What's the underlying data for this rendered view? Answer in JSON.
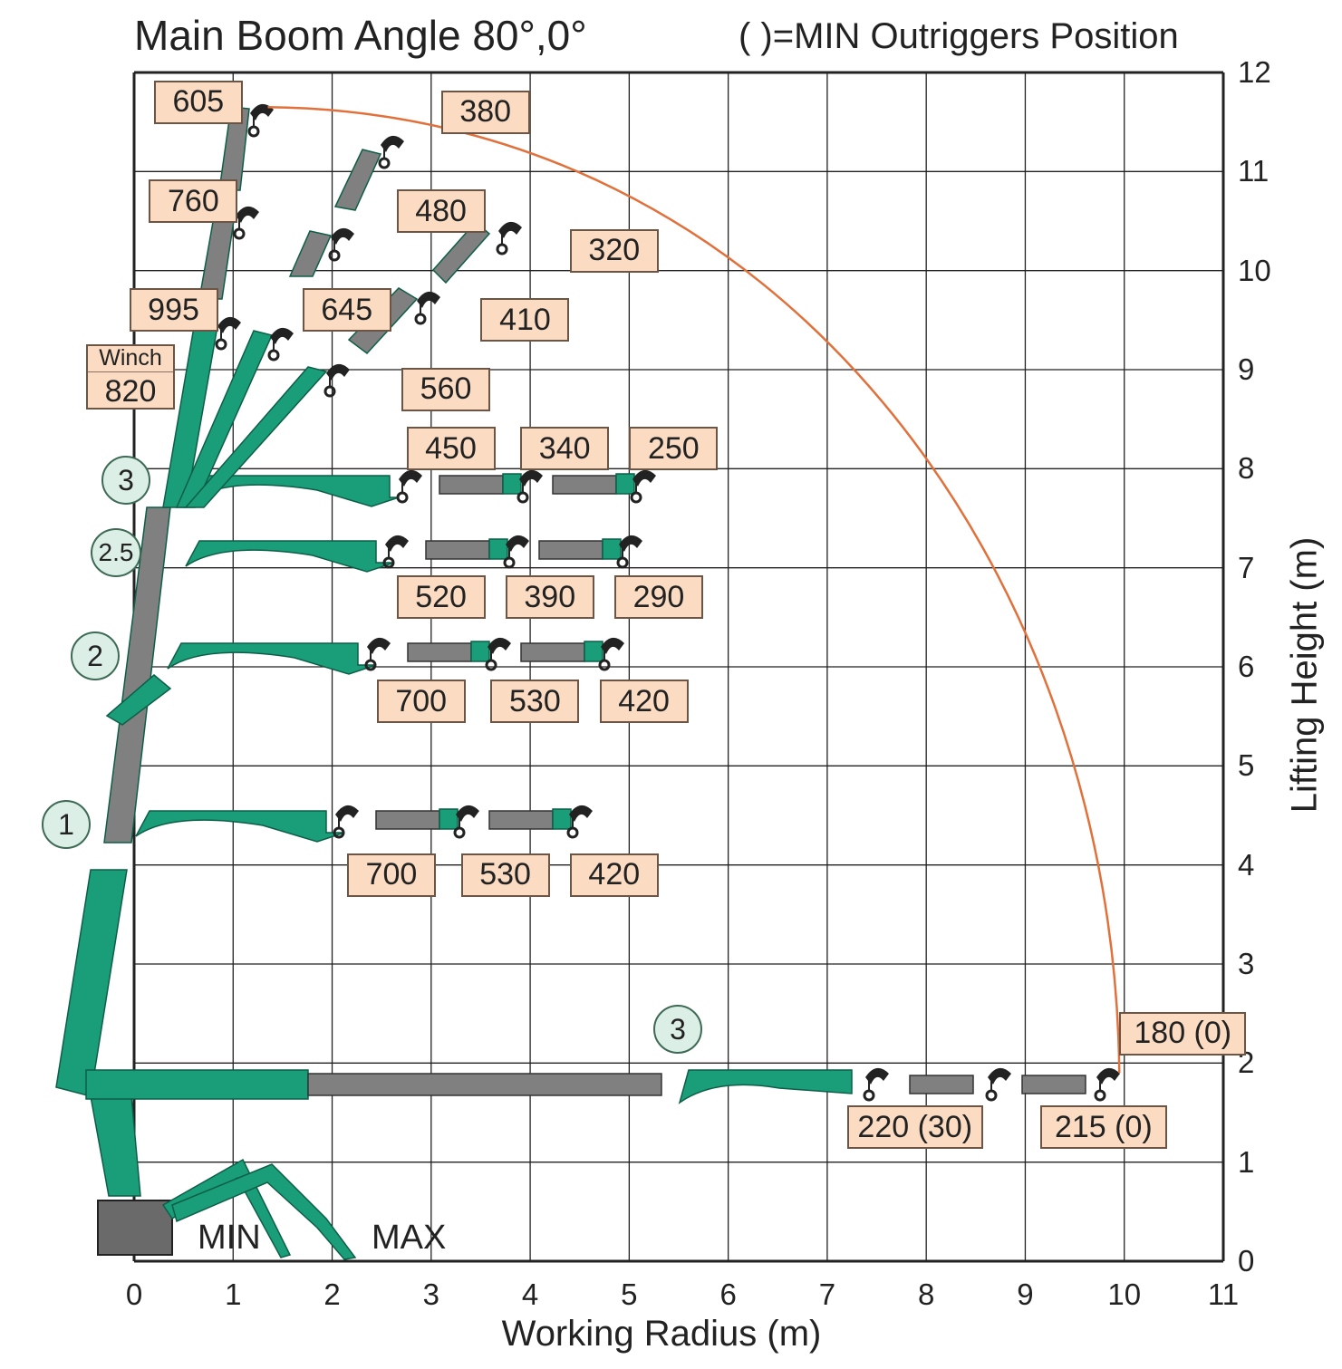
{
  "title": "Main Boom Angle 80°,0°",
  "note": "(  )=MIN Outriggers Position",
  "x_axis": {
    "label": "Working Radius (m)",
    "min": 0,
    "max": 11,
    "ticks": [
      "0",
      "1",
      "2",
      "3",
      "4",
      "5",
      "6",
      "7",
      "8",
      "9",
      "10",
      "11"
    ]
  },
  "y_axis": {
    "label": "Lifting Height (m)",
    "min": 0,
    "max": 12,
    "ticks": [
      "0",
      "1",
      "2",
      "3",
      "4",
      "5",
      "6",
      "7",
      "8",
      "9",
      "10",
      "11",
      "12"
    ]
  },
  "outriggers": {
    "min": "MIN",
    "max": "MAX"
  },
  "colors": {
    "boom": "#1a9e7a",
    "boom_dark": "#0d5e47",
    "extension": "#808080",
    "curve": "#e2703a",
    "label_bg": "#fbdcc2"
  },
  "sections": [
    "1",
    "2",
    "2.5",
    "3",
    "3"
  ],
  "winch": {
    "label": "Winch",
    "value": "820"
  },
  "loads": [
    {
      "id": "605",
      "text": "605",
      "x": 0.2,
      "y": 11.7
    },
    {
      "id": "760",
      "text": "760",
      "x": 0.15,
      "y": 10.7
    },
    {
      "id": "995",
      "text": "995",
      "x": -0.05,
      "y": 9.6
    },
    {
      "id": "380",
      "text": "380",
      "x": 3.1,
      "y": 11.6
    },
    {
      "id": "480",
      "text": "480",
      "x": 2.65,
      "y": 10.6
    },
    {
      "id": "645",
      "text": "645",
      "x": 1.7,
      "y": 9.6
    },
    {
      "id": "320",
      "text": "320",
      "x": 4.4,
      "y": 10.2
    },
    {
      "id": "410",
      "text": "410",
      "x": 3.5,
      "y": 9.5
    },
    {
      "id": "560",
      "text": "560",
      "x": 2.7,
      "y": 8.8
    },
    {
      "id": "450",
      "text": "450",
      "x": 2.75,
      "y": 8.2
    },
    {
      "id": "340",
      "text": "340",
      "x": 3.9,
      "y": 8.2
    },
    {
      "id": "250",
      "text": "250",
      "x": 5.0,
      "y": 8.2
    },
    {
      "id": "520",
      "text": "520",
      "x": 2.65,
      "y": 6.7
    },
    {
      "id": "390",
      "text": "390",
      "x": 3.75,
      "y": 6.7
    },
    {
      "id": "290",
      "text": "290",
      "x": 4.85,
      "y": 6.7
    },
    {
      "id": "700a",
      "text": "700",
      "x": 2.45,
      "y": 5.65
    },
    {
      "id": "530a",
      "text": "530",
      "x": 3.6,
      "y": 5.65
    },
    {
      "id": "420a",
      "text": "420",
      "x": 4.7,
      "y": 5.65
    },
    {
      "id": "700b",
      "text": "700",
      "x": 2.15,
      "y": 3.9
    },
    {
      "id": "530b",
      "text": "530",
      "x": 3.3,
      "y": 3.9
    },
    {
      "id": "420b",
      "text": "420",
      "x": 4.4,
      "y": 3.9
    },
    {
      "id": "180",
      "text": "180 (0)",
      "x": 9.95,
      "y": 2.3
    },
    {
      "id": "220",
      "text": "220 (30)",
      "x": 7.2,
      "y": 1.35
    },
    {
      "id": "215",
      "text": "215 (0)",
      "x": 9.15,
      "y": 1.35
    }
  ]
}
